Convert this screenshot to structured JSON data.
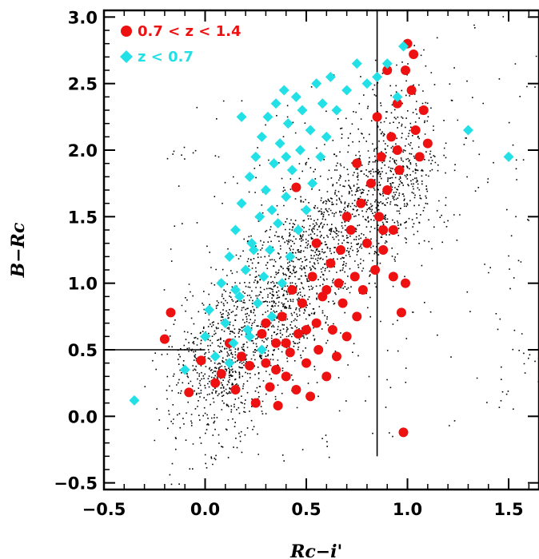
{
  "chart_data": {
    "type": "scatter",
    "title": "",
    "xlabel": "Rc−i'",
    "ylabel": "B−Rc",
    "xlim": [
      -0.5,
      1.65
    ],
    "ylim": [
      -0.55,
      3.05
    ],
    "xticks": [
      "−0.5",
      "0.0",
      "0.5",
      "1.0",
      "1.5"
    ],
    "xtick_values": [
      -0.5,
      0.0,
      0.5,
      1.0,
      1.5
    ],
    "yticks": [
      "−0.5",
      "0.0",
      "0.5",
      "1.0",
      "1.5",
      "2.0",
      "2.5",
      "3.0"
    ],
    "ytick_values": [
      -0.5,
      0.0,
      0.5,
      1.0,
      1.5,
      2.0,
      2.5,
      3.0
    ],
    "grid": false,
    "legend_position": "top-left",
    "selection_lines": {
      "vertical_x": 0.85,
      "horizontal_y": 0.5,
      "horizontal_x_range": [
        -0.5,
        0.0
      ]
    },
    "series": [
      {
        "name": "0.7 < z < 1.4",
        "label_text": "0.7 < z < 1.4",
        "color": "#ee1111",
        "marker": "circle",
        "points": [
          [
            -0.2,
            0.58
          ],
          [
            -0.17,
            0.78
          ],
          [
            -0.08,
            0.18
          ],
          [
            -0.02,
            0.42
          ],
          [
            0.05,
            0.25
          ],
          [
            0.08,
            0.32
          ],
          [
            0.12,
            0.55
          ],
          [
            0.15,
            0.2
          ],
          [
            0.18,
            0.45
          ],
          [
            0.22,
            0.38
          ],
          [
            0.25,
            0.1
          ],
          [
            0.28,
            0.62
          ],
          [
            0.3,
            0.4
          ],
          [
            0.32,
            0.22
          ],
          [
            0.35,
            0.55
          ],
          [
            0.36,
            0.08
          ],
          [
            0.38,
            0.75
          ],
          [
            0.4,
            0.3
          ],
          [
            0.42,
            0.48
          ],
          [
            0.43,
            0.95
          ],
          [
            0.45,
            0.2
          ],
          [
            0.46,
            0.62
          ],
          [
            0.48,
            0.85
          ],
          [
            0.5,
            0.4
          ],
          [
            0.52,
            0.15
          ],
          [
            0.53,
            1.05
          ],
          [
            0.55,
            0.7
          ],
          [
            0.56,
            0.5
          ],
          [
            0.58,
            0.9
          ],
          [
            0.6,
            0.3
          ],
          [
            0.62,
            1.15
          ],
          [
            0.63,
            0.65
          ],
          [
            0.65,
            0.45
          ],
          [
            0.67,
            1.25
          ],
          [
            0.68,
            0.85
          ],
          [
            0.7,
            0.6
          ],
          [
            0.72,
            1.4
          ],
          [
            0.74,
            1.05
          ],
          [
            0.75,
            0.75
          ],
          [
            0.77,
            1.6
          ],
          [
            0.78,
            0.95
          ],
          [
            0.8,
            1.3
          ],
          [
            0.82,
            1.75
          ],
          [
            0.84,
            1.1
          ],
          [
            0.86,
            1.5
          ],
          [
            0.87,
            1.95
          ],
          [
            0.88,
            1.25
          ],
          [
            0.9,
            1.7
          ],
          [
            0.92,
            2.1
          ],
          [
            0.93,
            1.4
          ],
          [
            0.95,
            2.35
          ],
          [
            0.96,
            1.85
          ],
          [
            0.97,
            0.78
          ],
          [
            0.98,
            -0.12
          ],
          [
            0.99,
            2.6
          ],
          [
            1.0,
            2.8
          ],
          [
            1.02,
            2.45
          ],
          [
            1.03,
            2.72
          ],
          [
            1.04,
            2.15
          ],
          [
            1.06,
            1.95
          ],
          [
            1.08,
            2.3
          ],
          [
            1.1,
            2.05
          ],
          [
            0.45,
            1.72
          ],
          [
            0.55,
            1.3
          ],
          [
            0.6,
            0.95
          ],
          [
            0.85,
            2.25
          ],
          [
            0.9,
            2.6
          ],
          [
            0.95,
            2.0
          ],
          [
            0.7,
            1.5
          ],
          [
            0.5,
            0.65
          ],
          [
            0.4,
            0.55
          ],
          [
            0.35,
            0.35
          ],
          [
            0.3,
            0.7
          ],
          [
            0.66,
            1.0
          ],
          [
            0.75,
            1.9
          ],
          [
            0.88,
            1.4
          ],
          [
            0.93,
            1.05
          ],
          [
            0.99,
            1.0
          ]
        ]
      },
      {
        "name": "z < 0.7",
        "label_text": "z < 0.7",
        "color": "#22e0e6",
        "marker": "diamond",
        "points": [
          [
            -0.35,
            0.12
          ],
          [
            -0.1,
            0.35
          ],
          [
            0.0,
            0.6
          ],
          [
            0.02,
            0.8
          ],
          [
            0.05,
            0.45
          ],
          [
            0.08,
            1.0
          ],
          [
            0.1,
            0.7
          ],
          [
            0.12,
            1.2
          ],
          [
            0.14,
            0.55
          ],
          [
            0.15,
            1.4
          ],
          [
            0.17,
            0.9
          ],
          [
            0.18,
            1.6
          ],
          [
            0.2,
            1.1
          ],
          [
            0.21,
            0.65
          ],
          [
            0.22,
            1.8
          ],
          [
            0.23,
            1.3
          ],
          [
            0.25,
            1.95
          ],
          [
            0.26,
            0.85
          ],
          [
            0.27,
            1.5
          ],
          [
            0.28,
            2.1
          ],
          [
            0.29,
            1.05
          ],
          [
            0.3,
            1.7
          ],
          [
            0.31,
            2.25
          ],
          [
            0.32,
            1.25
          ],
          [
            0.33,
            0.75
          ],
          [
            0.34,
            1.9
          ],
          [
            0.35,
            2.35
          ],
          [
            0.36,
            1.45
          ],
          [
            0.37,
            2.05
          ],
          [
            0.38,
            1.0
          ],
          [
            0.39,
            2.45
          ],
          [
            0.4,
            1.65
          ],
          [
            0.41,
            2.2
          ],
          [
            0.42,
            1.2
          ],
          [
            0.43,
            1.85
          ],
          [
            0.45,
            2.4
          ],
          [
            0.46,
            1.4
          ],
          [
            0.47,
            2.0
          ],
          [
            0.48,
            2.3
          ],
          [
            0.5,
            1.55
          ],
          [
            0.52,
            2.15
          ],
          [
            0.53,
            1.75
          ],
          [
            0.55,
            2.5
          ],
          [
            0.57,
            1.95
          ],
          [
            0.58,
            2.35
          ],
          [
            0.6,
            2.1
          ],
          [
            0.62,
            2.55
          ],
          [
            0.65,
            2.3
          ],
          [
            0.7,
            2.45
          ],
          [
            0.75,
            2.65
          ],
          [
            0.8,
            2.5
          ],
          [
            0.85,
            2.55
          ],
          [
            0.9,
            2.65
          ],
          [
            0.95,
            2.4
          ],
          [
            0.98,
            2.78
          ],
          [
            1.3,
            2.15
          ],
          [
            1.5,
            1.95
          ],
          [
            0.18,
            2.25
          ],
          [
            0.12,
            0.4
          ],
          [
            0.28,
            0.5
          ],
          [
            0.24,
            1.25
          ],
          [
            0.33,
            1.55
          ],
          [
            0.15,
            0.95
          ],
          [
            0.4,
            1.95
          ],
          [
            0.22,
            0.6
          ]
        ]
      }
    ]
  }
}
